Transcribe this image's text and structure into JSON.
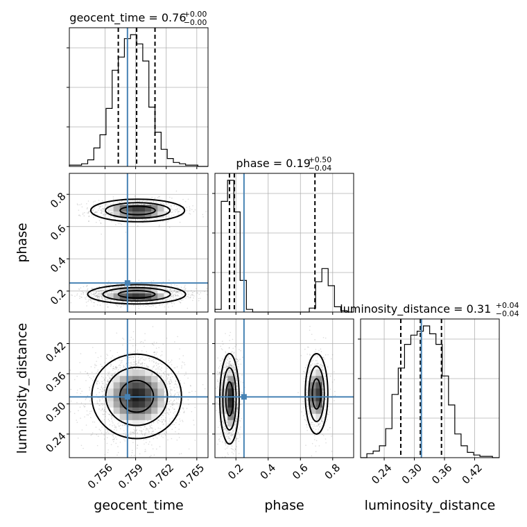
{
  "chart_data": {
    "type": "corner",
    "parameters": [
      {
        "name": "geocent_time",
        "range": [
          0.7525,
          0.7661
        ],
        "ticks": [
          0.756,
          0.759,
          0.762,
          0.765
        ],
        "tick_labels": [
          "0.756",
          "0.759",
          "0.762",
          "0.765"
        ]
      },
      {
        "name": "phase",
        "range": [
          0.07,
          0.93
        ],
        "ticks": [
          0.2,
          0.4,
          0.6,
          0.8
        ],
        "tick_labels": [
          "0.2",
          "0.4",
          "0.6",
          "0.8"
        ]
      },
      {
        "name": "luminosity_distance",
        "range": [
          0.193,
          0.469
        ],
        "ticks": [
          0.24,
          0.3,
          0.36,
          0.42
        ],
        "tick_labels": [
          "0.24",
          "0.30",
          "0.36",
          "0.42"
        ]
      }
    ],
    "titles": [
      {
        "base": "geocent_time = 0.76",
        "plus": "+0.00",
        "minus": "−0.00"
      },
      {
        "base": "phase = 0.19",
        "plus": "+0.50",
        "minus": "−0.04"
      },
      {
        "base": "luminosity_distance = 0.31",
        "plus": "+0.04",
        "minus": "−0.04"
      }
    ],
    "truths": [
      0.7582,
      0.25,
      0.314
    ],
    "quantiles": [
      [
        0.7573,
        0.7591,
        0.7609
      ],
      [
        0.16,
        0.19,
        0.69
      ],
      [
        0.273,
        0.312,
        0.354
      ]
    ],
    "histograms": [
      {
        "bin_edges": [
          0.7525,
          0.7531,
          0.7537,
          0.7543,
          0.7549,
          0.7555,
          0.7561,
          0.7567,
          0.7573,
          0.7579,
          0.7585,
          0.7591,
          0.7597,
          0.7603,
          0.7609,
          0.7615,
          0.7621,
          0.7627,
          0.7633,
          0.7639,
          0.7645,
          0.7651,
          0.7657
        ],
        "counts": [
          1,
          1,
          2,
          5,
          14,
          24,
          44,
          73,
          83,
          97,
          100,
          93,
          80,
          45,
          26,
          13,
          6,
          3,
          2,
          1,
          1,
          0
        ]
      },
      {
        "bin_edges": [
          0.07,
          0.109,
          0.148,
          0.187,
          0.226,
          0.265,
          0.304,
          0.343,
          0.382,
          0.421,
          0.46,
          0.499,
          0.538,
          0.577,
          0.616,
          0.655,
          0.694,
          0.733,
          0.772,
          0.811,
          0.85,
          0.889,
          0.93
        ],
        "counts": [
          2,
          84,
          100,
          76,
          24,
          2,
          0,
          0,
          0,
          0,
          0,
          0,
          0,
          0,
          0,
          3,
          23,
          33,
          20,
          4,
          1,
          0
        ]
      },
      {
        "bin_edges": [
          0.193,
          0.2055,
          0.218,
          0.2305,
          0.243,
          0.2555,
          0.268,
          0.2805,
          0.293,
          0.3055,
          0.318,
          0.3305,
          0.343,
          0.3555,
          0.368,
          0.3805,
          0.393,
          0.4055,
          0.418,
          0.4305,
          0.443,
          0.4555,
          0.469
        ],
        "counts": [
          0,
          3,
          5,
          9,
          22,
          48,
          68,
          86,
          93,
          96,
          100,
          94,
          86,
          62,
          40,
          18,
          9,
          4,
          2,
          1,
          1,
          0
        ]
      }
    ],
    "modes_2d": [
      {
        "x": "geocent_time",
        "y": "phase",
        "blobs": [
          {
            "cx": 0.7592,
            "cy": 0.7,
            "sx": 0.0023,
            "sy": 0.035,
            "n": 900
          },
          {
            "cx": 0.7591,
            "cy": 0.18,
            "sx": 0.0024,
            "sy": 0.03,
            "n": 1700
          }
        ]
      },
      {
        "x": "geocent_time",
        "y": "luminosity_distance",
        "blobs": [
          {
            "cx": 0.7591,
            "cy": 0.315,
            "sx": 0.0022,
            "sy": 0.042,
            "n": 2200
          }
        ]
      },
      {
        "x": "phase",
        "y": "luminosity_distance",
        "blobs": [
          {
            "cx": 0.16,
            "cy": 0.31,
            "sx": 0.03,
            "sy": 0.045,
            "n": 1500
          },
          {
            "cx": 0.7,
            "cy": 0.32,
            "sx": 0.035,
            "sy": 0.04,
            "n": 700
          }
        ]
      }
    ],
    "grid": true
  }
}
